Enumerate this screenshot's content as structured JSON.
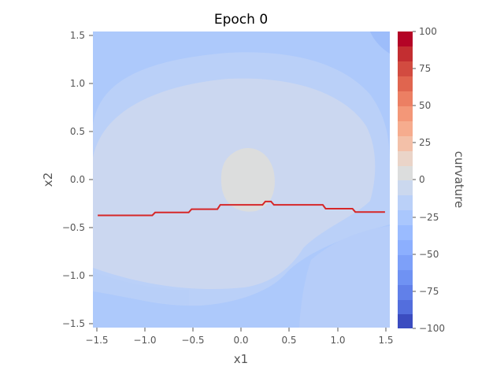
{
  "chart_data": {
    "type": "heatmap",
    "title": "Epoch 0",
    "xlabel": "x1",
    "ylabel": "x2",
    "xlim": [
      -1.55,
      1.55
    ],
    "ylim": [
      -1.55,
      1.55
    ],
    "x_ticks": [
      -1.5,
      -1.0,
      -0.5,
      0.0,
      0.5,
      1.0,
      1.5
    ],
    "x_tick_labels": [
      "−1.5",
      "−1.0",
      "−0.5",
      "0.0",
      "0.5",
      "1.0",
      "1.5"
    ],
    "y_ticks": [
      -1.5,
      -1.0,
      -0.5,
      0.0,
      0.5,
      1.0,
      1.5
    ],
    "y_tick_labels": [
      "−1.5",
      "−1.0",
      "−0.5",
      "0.0",
      "0.5",
      "1.0",
      "1.5"
    ],
    "grid": false,
    "colorbar": {
      "label": "curvature",
      "range": [
        -100,
        100
      ],
      "ticks": [
        100,
        75,
        50,
        25,
        0,
        -25,
        -50,
        -75,
        -100
      ],
      "tick_labels": [
        "100",
        "75",
        "50",
        "25",
        "0",
        "−25",
        "−50",
        "−75",
        "−100"
      ],
      "colormap": "coolwarm"
    },
    "series": [
      {
        "type": "line",
        "color": "#d62728",
        "x": [
          -1.5,
          -0.93,
          -0.9,
          -0.55,
          -0.52,
          -0.25,
          -0.22,
          0.22,
          0.25,
          0.31,
          0.34,
          0.85,
          0.88,
          1.16,
          1.19,
          1.5
        ],
        "y": [
          -0.375,
          -0.375,
          -0.345,
          -0.345,
          -0.31,
          -0.31,
          -0.265,
          -0.265,
          -0.23,
          -0.23,
          -0.265,
          -0.265,
          -0.305,
          -0.305,
          -0.34,
          -0.34
        ]
      }
    ]
  }
}
